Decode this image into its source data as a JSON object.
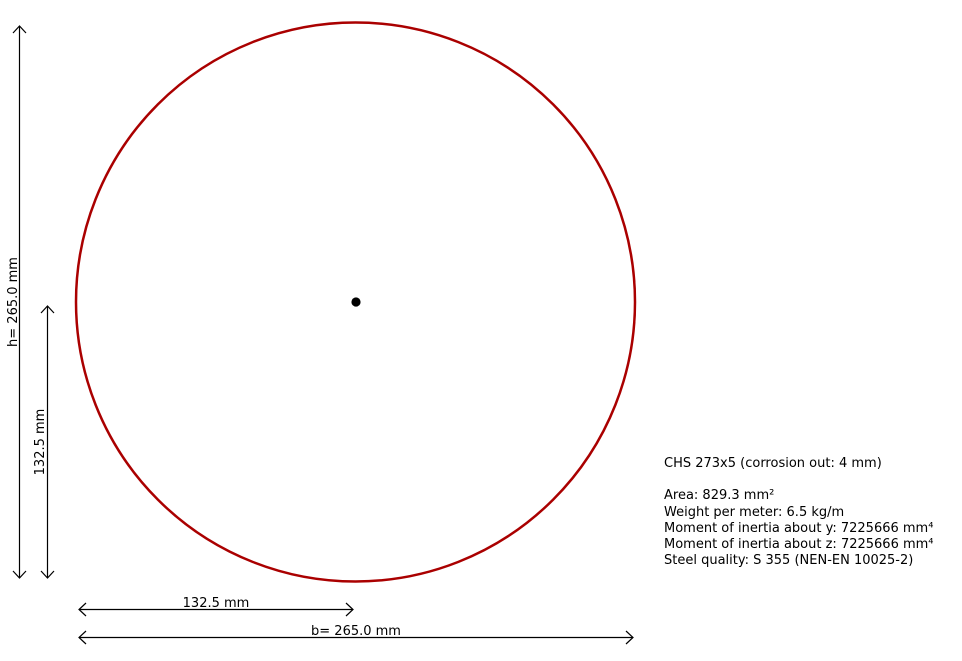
{
  "section": {
    "title": "CHS 273x5 (corrosion out: 4 mm)",
    "outline_color": "#aa0000",
    "centroid_color": "#000000"
  },
  "dimensions": {
    "height_label": "h= 265.0 mm",
    "half_height_label": "132.5 mm",
    "half_width_label": "132.5 mm",
    "width_label": "b= 265.0 mm"
  },
  "properties": [
    {
      "label": "Area: 829.3 mm²"
    },
    {
      "label": "Weight per meter: 6.5 kg/m"
    },
    {
      "label": "Moment of inertia about y: 7225666 mm⁴"
    },
    {
      "label": "Moment of inertia about z: 7225666 mm⁴"
    },
    {
      "label": "Steel quality: S 355 (NEN-EN 10025-2)"
    }
  ]
}
